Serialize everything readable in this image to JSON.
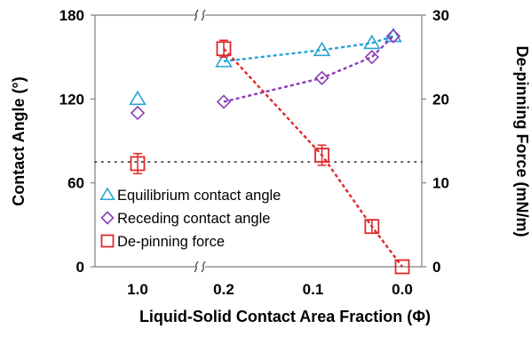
{
  "chart_data": {
    "type": "scatter",
    "xlabel": "Liquid-Solid Contact Area Fraction (Φ)",
    "ylabel": "Contact Angle (°)",
    "y2label": "De-pinning Force (mN/m)",
    "x_tick_labels": [
      "1.0",
      "0.2",
      "0.1",
      "0.0"
    ],
    "x_axis": {
      "broken": true,
      "break_between": [
        "1.0",
        "0.2"
      ],
      "reversed": true,
      "segment_range": [
        0.2,
        0.0
      ]
    },
    "y_ticks": [
      "0",
      "60",
      "120",
      "180"
    ],
    "y2_ticks": [
      "0",
      "10",
      "20",
      "30"
    ],
    "ylim": [
      0,
      180
    ],
    "y2lim": [
      0,
      30
    ],
    "reference_line": {
      "axis": "y",
      "value": 75,
      "style": "dotted"
    },
    "grid": false,
    "legend_position": "lower-left",
    "series": [
      {
        "name": "Equilibrium contact angle",
        "marker": "triangle",
        "color": "#29a3d6",
        "axis": "left",
        "points": [
          {
            "x": 1.0,
            "y": 120,
            "connected": false
          },
          {
            "x": 0.2,
            "y": 147,
            "connected": true
          },
          {
            "x": 0.09,
            "y": 155,
            "connected": true
          },
          {
            "x": 0.034,
            "y": 160,
            "connected": true
          },
          {
            "x": 0.01,
            "y": 165,
            "connected": true
          }
        ]
      },
      {
        "name": "Receding contact angle",
        "marker": "diamond",
        "color": "#8a3db8",
        "axis": "left",
        "points": [
          {
            "x": 1.0,
            "y": 110,
            "connected": false
          },
          {
            "x": 0.2,
            "y": 118,
            "connected": true
          },
          {
            "x": 0.09,
            "y": 135,
            "connected": true
          },
          {
            "x": 0.034,
            "y": 150,
            "connected": true
          },
          {
            "x": 0.01,
            "y": 165,
            "connected": true
          }
        ]
      },
      {
        "name": "De-pinning force",
        "marker": "square",
        "color": "#e0282a",
        "axis": "right",
        "points": [
          {
            "x": 1.0,
            "y": 12.3,
            "err": 1.2,
            "connected": false
          },
          {
            "x": 0.2,
            "y": 26.0,
            "err": 1.0,
            "connected": true
          },
          {
            "x": 0.09,
            "y": 13.3,
            "err": 1.2,
            "connected": true
          },
          {
            "x": 0.034,
            "y": 4.8,
            "err": 0.8,
            "connected": true
          },
          {
            "x": 0.0,
            "y": 0.0,
            "err": 0,
            "connected": true
          }
        ]
      }
    ]
  }
}
